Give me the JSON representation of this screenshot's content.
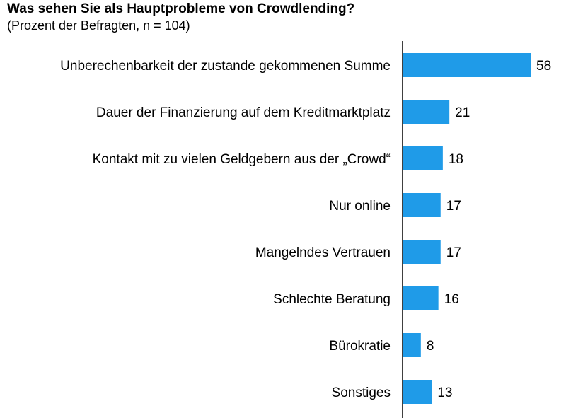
{
  "header": {
    "title": "Was sehen Sie als Hauptprobleme von Crowdlending?",
    "subtitle": "(Prozent der Befragten, n = 104)"
  },
  "colors": {
    "bar": "#1f9be8",
    "axis": "#000000"
  },
  "chart_data": {
    "type": "bar",
    "orientation": "horizontal",
    "title": "Was sehen Sie als Hauptprobleme von Crowdlending?",
    "subtitle": "(Prozent der Befragten, n = 104)",
    "xlabel": "",
    "ylabel": "",
    "xlim": [
      0,
      58
    ],
    "grid": false,
    "categories": [
      "Unberechenbarkeit der zustande gekommenen Summe",
      "Dauer der Finanzierung auf dem Kreditmarktplatz",
      "Kontakt mit zu vielen Geldgebern aus der „Crowd“",
      "Nur online",
      "Mangelndes Vertrauen",
      "Schlechte Beratung",
      "Bürokratie",
      "Sonstiges"
    ],
    "values": [
      58,
      21,
      18,
      17,
      17,
      16,
      8,
      13
    ]
  }
}
